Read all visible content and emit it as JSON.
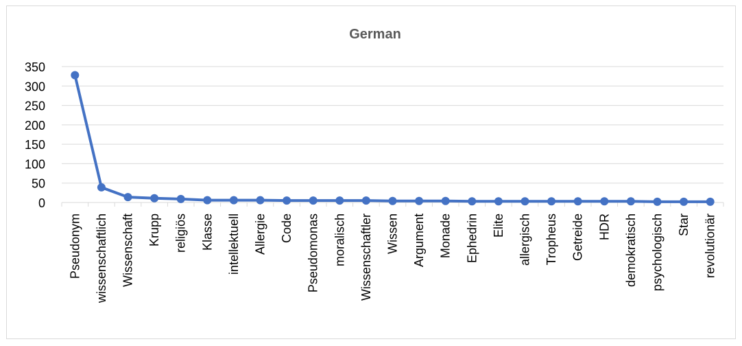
{
  "chart_data": {
    "type": "line",
    "title": "German",
    "xlabel": "",
    "ylabel": "",
    "ylim": [
      0,
      350
    ],
    "yticks": [
      0,
      50,
      100,
      150,
      200,
      250,
      300,
      350
    ],
    "grid": true,
    "legend": "none",
    "color": "#4472c4",
    "categories": [
      "Pseudonym",
      "wissenschaftlich",
      "Wissenschaft",
      "Krupp",
      "religiös",
      "Klasse",
      "intellektuell",
      "Allergie",
      "Code",
      "Pseudomonas",
      "moralisch",
      "Wissenschaftler",
      "Wissen",
      "Argument",
      "Monade",
      "Ephedrin",
      "Elite",
      "allergisch",
      "Tropheus",
      "Getreide",
      "HDR",
      "demokratisch",
      "psychologisch",
      "Star",
      "revolutionär"
    ],
    "values": [
      328,
      39,
      14,
      11,
      9,
      6,
      6,
      6,
      5,
      5,
      5,
      5,
      4,
      4,
      4,
      3,
      3,
      3,
      3,
      3,
      3,
      3,
      2,
      2,
      2
    ]
  }
}
